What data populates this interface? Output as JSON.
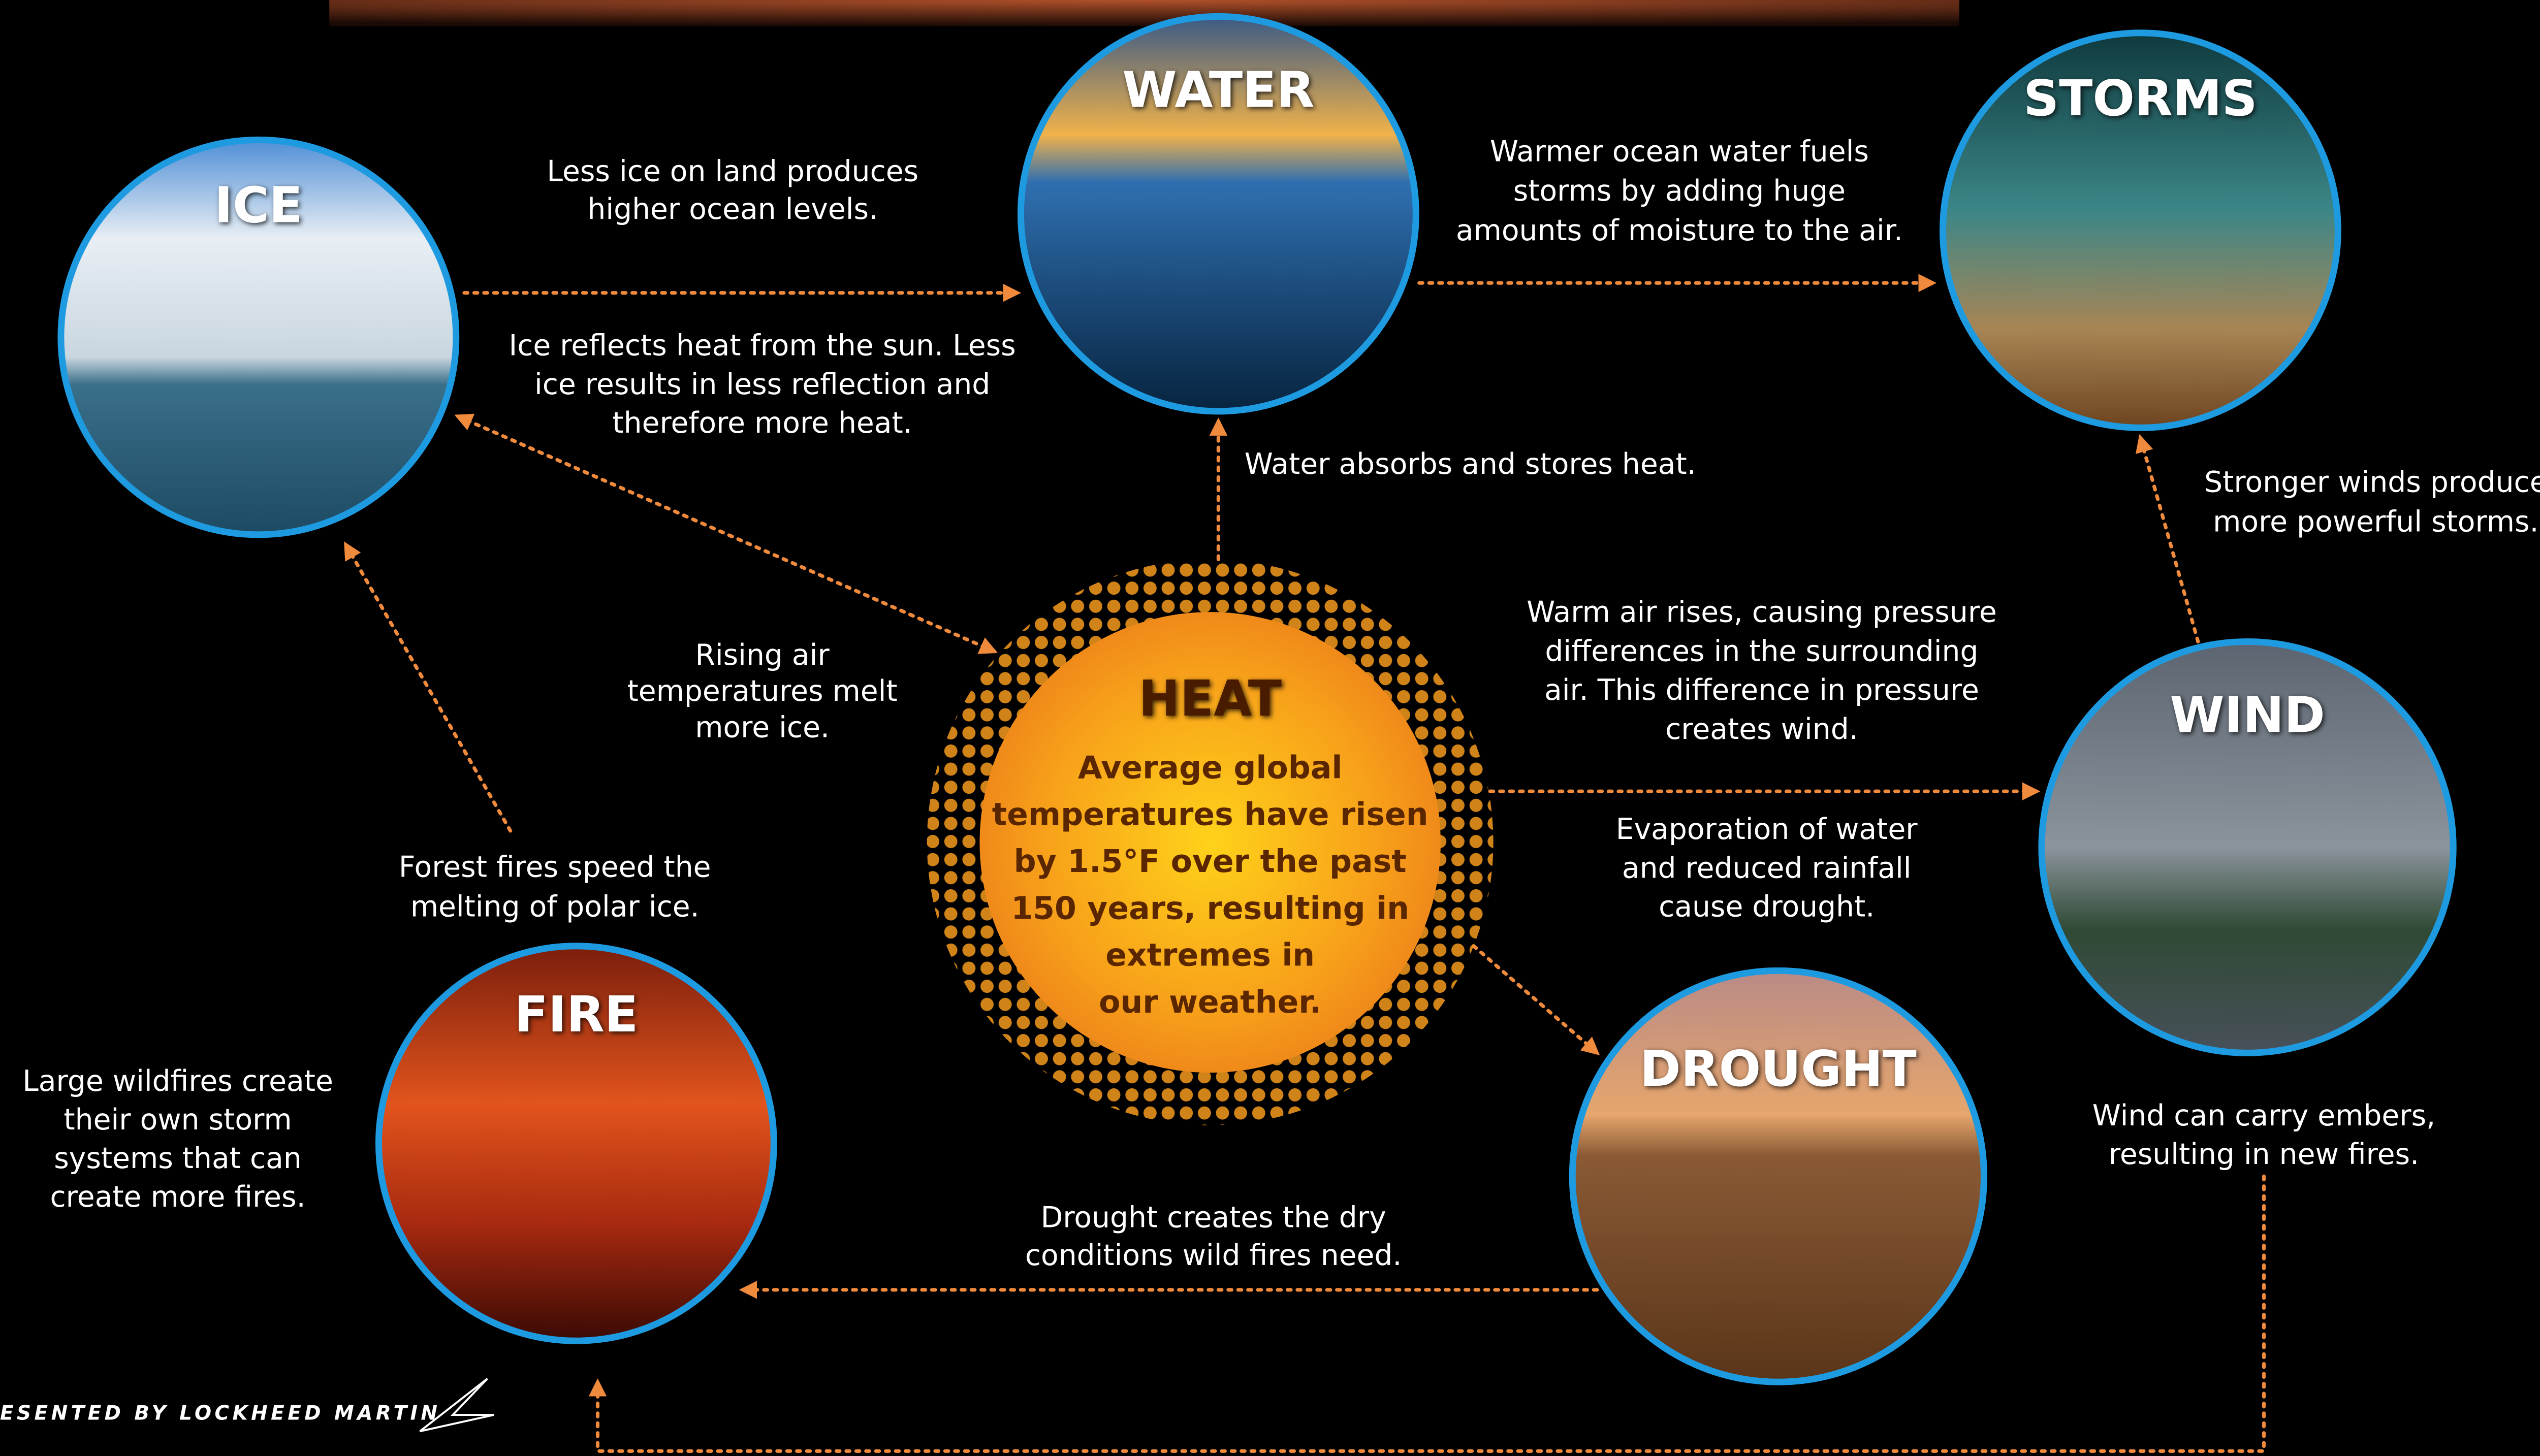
{
  "header": {
    "credit": "ESENTED BY LOCKHEED MARTIN"
  },
  "nodes": [
    {
      "label": "ICE"
    },
    {
      "label": "WATER"
    },
    {
      "label": "STORMS"
    },
    {
      "label": "HEAT",
      "description": [
        "Average global",
        "temperatures have risen",
        "by 1.5°F over the past",
        "150 years, resulting in",
        "extremes in",
        "our weather."
      ]
    },
    {
      "label": "WIND"
    },
    {
      "label": "DROUGHT"
    },
    {
      "label": "FIRE"
    }
  ],
  "edge_labels": [
    {
      "lines": [
        "Less ice on land produces",
        "higher ocean levels."
      ]
    },
    {
      "lines": [
        "Ice reflects heat from the sun. Less",
        "ice results in less reflection and",
        "therefore more heat."
      ]
    },
    {
      "lines": [
        "Warmer ocean water fuels",
        "storms by adding huge",
        "amounts of moisture to the air."
      ]
    },
    {
      "lines": [
        "Water absorbs and stores heat."
      ]
    },
    {
      "lines": [
        "Stronger winds produce",
        "more powerful storms."
      ]
    },
    {
      "lines": [
        "Rising air",
        "temperatures melt",
        "more ice."
      ]
    },
    {
      "lines": [
        "Warm air rises, causing pressure",
        "differences in the surrounding",
        "air. This difference in pressure",
        "creates wind."
      ]
    },
    {
      "lines": [
        "Evaporation of water",
        "and reduced rainfall",
        "cause drought."
      ]
    },
    {
      "lines": [
        "Forest fires speed the",
        "melting of polar ice."
      ]
    },
    {
      "lines": [
        "Large wildfires create",
        "their own storm",
        "systems that can",
        "create more fires."
      ]
    },
    {
      "lines": [
        "Wind can carry embers,",
        "resulting in new fires."
      ]
    },
    {
      "lines": [
        "Drought creates the dry",
        "conditions wild fires need."
      ]
    }
  ]
}
